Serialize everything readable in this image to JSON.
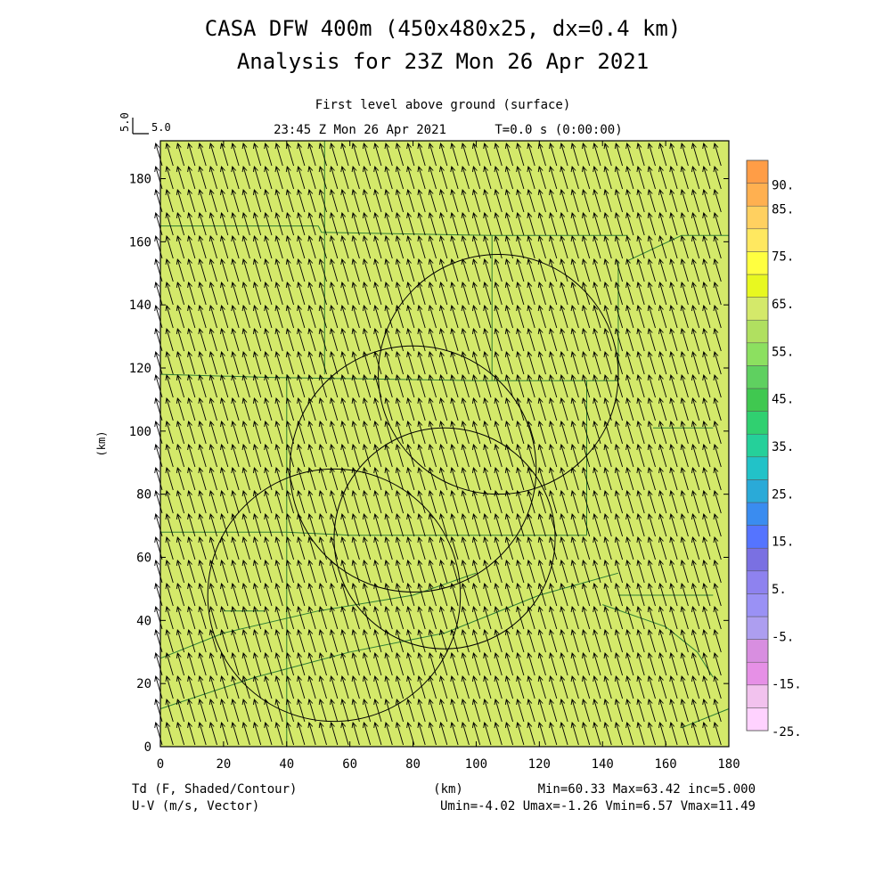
{
  "chart_data": {
    "type": "heatmap",
    "title": "CASA DFW 400m (450x480x25, dx=0.4 km)",
    "subtitle": "Analysis for 23Z Mon 26 Apr 2021",
    "level_label": "First level above ground (surface)",
    "time_label": "23:45 Z Mon 26 Apr 2021",
    "model_time_label": "T=0.0 s (0:00:00)",
    "reference_vector": {
      "axis_label": "5.0",
      "value_label": "5.0"
    },
    "xlabel": "(km)",
    "ylabel": "(km)",
    "xlim": [
      0,
      180
    ],
    "ylim": [
      0,
      192
    ],
    "x_ticks": [
      0,
      20,
      40,
      60,
      80,
      100,
      120,
      140,
      160,
      180
    ],
    "y_ticks": [
      0,
      20,
      40,
      60,
      80,
      100,
      120,
      140,
      160,
      180
    ],
    "field_label": "Td (F, Shaded/Contour)",
    "vector_label": "U-V (m/s, Vector)",
    "stats_line1": "Min=60.33 Max=63.42 inc=5.000",
    "stats_line2": "Umin=-4.02 Umax=-1.26 Vmin=6.57 Vmax=11.49",
    "field_stats": {
      "min": 60.33,
      "max": 63.42,
      "inc": 5.0
    },
    "wind_stats": {
      "umin": -4.02,
      "umax": -1.26,
      "vmin": 6.57,
      "vmax": 11.49
    },
    "fill_color": "#d4e96a",
    "colorbar": {
      "colors": [
        "#ffd2ff",
        "#f2c2ee",
        "#e690e6",
        "#d88ee0",
        "#ad9ef0",
        "#9a91f5",
        "#8e82ef",
        "#7a70e2",
        "#5574ff",
        "#3a8cf0",
        "#2aaad8",
        "#22c2c8",
        "#25d09a",
        "#30d070",
        "#40c850",
        "#5fd060",
        "#8ce060",
        "#b0e060",
        "#d4e96a",
        "#e8f820",
        "#ffff40",
        "#ffe860",
        "#ffd060",
        "#ffb050",
        "#ff9d46"
      ],
      "tick_labels": [
        "90.",
        "85.",
        "75.",
        "65.",
        "55.",
        "45.",
        "35.",
        "25.",
        "15.",
        "5.",
        "-5.",
        "-15.",
        "-25."
      ],
      "tick_values": [
        90,
        85,
        75,
        65,
        55,
        45,
        35,
        25,
        15,
        5,
        -5,
        -15,
        -25
      ]
    },
    "range_rings_km": [
      {
        "center": [
          107,
          118
        ],
        "radius": 38
      },
      {
        "center": [
          80,
          88
        ],
        "radius": 39
      },
      {
        "center": [
          90,
          66
        ],
        "radius": 35
      },
      {
        "center": [
          55,
          48
        ],
        "radius": 40
      }
    ],
    "county_lines_km": [
      [
        [
          0,
          165
        ],
        [
          50,
          165
        ],
        [
          51,
          163
        ],
        [
          105,
          162
        ],
        [
          148,
          162
        ]
      ],
      [
        [
          0,
          118
        ],
        [
          35,
          117
        ],
        [
          100,
          116
        ],
        [
          145,
          116
        ]
      ],
      [
        [
          0,
          68
        ],
        [
          40,
          68
        ],
        [
          60,
          67
        ],
        [
          135,
          67
        ]
      ],
      [
        [
          148,
          154
        ],
        [
          165,
          162
        ],
        [
          180,
          162
        ]
      ],
      [
        [
          156,
          101
        ],
        [
          175,
          101
        ]
      ],
      [
        [
          145,
          48
        ],
        [
          175,
          48
        ]
      ],
      [
        [
          0,
          28
        ],
        [
          20,
          36
        ],
        [
          50,
          43
        ],
        [
          80,
          48
        ],
        [
          100,
          55
        ]
      ],
      [
        [
          0,
          12
        ],
        [
          30,
          22
        ],
        [
          60,
          30
        ],
        [
          90,
          36
        ],
        [
          120,
          48
        ],
        [
          145,
          55
        ]
      ],
      [
        [
          140,
          45
        ],
        [
          160,
          38
        ],
        [
          170,
          30
        ],
        [
          175,
          22
        ]
      ],
      [
        [
          165,
          6
        ],
        [
          180,
          12
        ]
      ],
      [
        [
          40,
          0
        ],
        [
          40,
          118
        ]
      ],
      [
        [
          52,
          118
        ],
        [
          52,
          192
        ]
      ],
      [
        [
          105,
          116
        ],
        [
          105,
          162
        ]
      ],
      [
        [
          135,
          67
        ],
        [
          135,
          116
        ]
      ],
      [
        [
          145,
          116
        ],
        [
          145,
          154
        ]
      ],
      [
        [
          20,
          43
        ],
        [
          33,
          43
        ]
      ]
    ]
  }
}
